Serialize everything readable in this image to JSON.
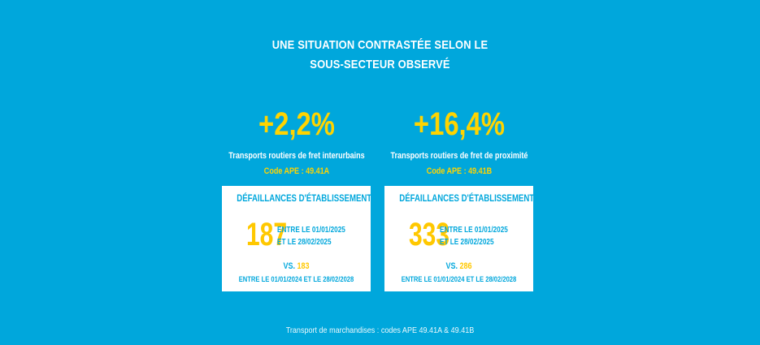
{
  "title": {
    "line1": "UNE SITUATION CONTRASTÉE SELON LE",
    "line2": "SOUS-SECTEUR OBSERVÉ"
  },
  "colors": {
    "background": "#00a7dc",
    "accent_yellow": "#ffd400",
    "box_background": "#ffffff"
  },
  "sectors": [
    {
      "change": "+2,2%",
      "name": "Transports routiers de fret interurbains",
      "code": "Code APE : 49.41A",
      "box": {
        "heading": "DÉFAILLANCES D'ÉTABLISSEMENTS",
        "count": "187",
        "period_line1": "ENTRE LE 01/01/2025",
        "period_line2": "ET LE 28/02/2025",
        "vs_label": "VS.",
        "vs_count": "183",
        "vs_period": "ENTRE LE 01/01/2024 ET LE 28/02/2028"
      }
    },
    {
      "change": "+16,4%",
      "name": "Transports routiers de fret de proximité",
      "code": "Code APE : 49.41B",
      "box": {
        "heading": "DÉFAILLANCES D'ÉTABLISSEMENTS",
        "count": "333",
        "period_line1": "ENTRE LE 01/01/2025",
        "period_line2": "ET LE 28/02/2025",
        "vs_label": "VS.",
        "vs_count": "286",
        "vs_period": "ENTRE LE 01/01/2024 ET LE 28/02/2028"
      }
    }
  ],
  "footer": "Transport de marchandises : codes APE 49.41A & 49.41B"
}
